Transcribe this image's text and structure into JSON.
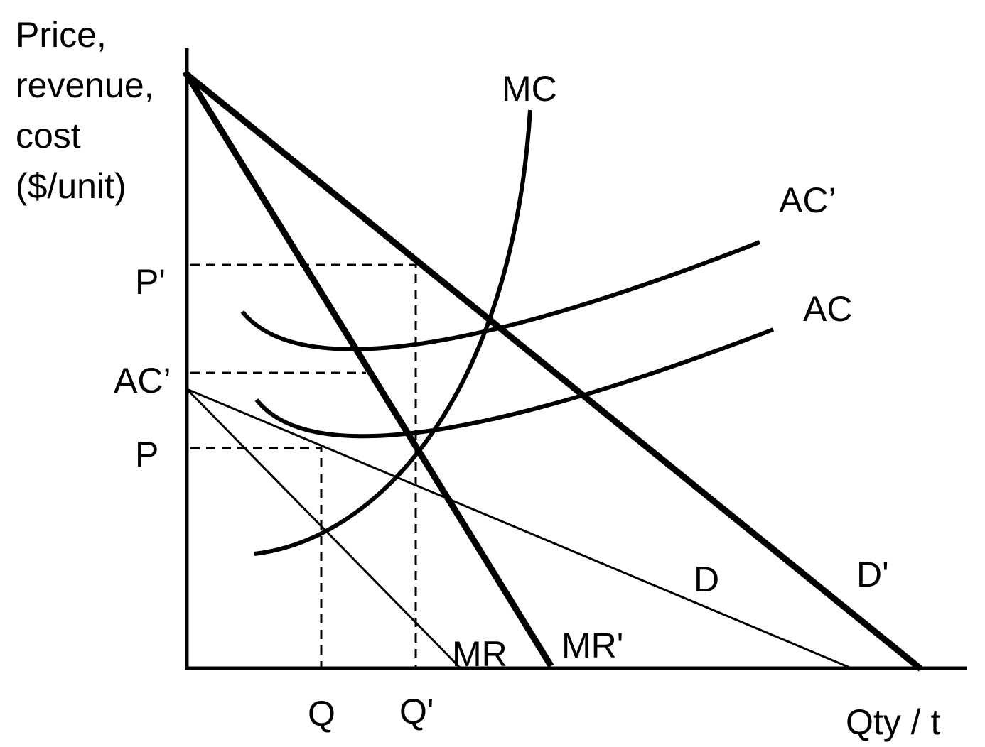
{
  "y_axis_label": [
    "Price,",
    "revenue,",
    "cost",
    "($/unit)"
  ],
  "x_axis_label": "Qty / t",
  "tick_labels": {
    "p_prime": "P'",
    "ac_prime": "AC’",
    "p": "P",
    "q": "Q",
    "q_prime": "Q'"
  },
  "curve_labels": {
    "mc": "MC",
    "ac_prime": "AC’",
    "ac": "AC",
    "d": "D",
    "d_prime": "D'",
    "mr": "MR",
    "mr_prime": "MR'"
  }
}
